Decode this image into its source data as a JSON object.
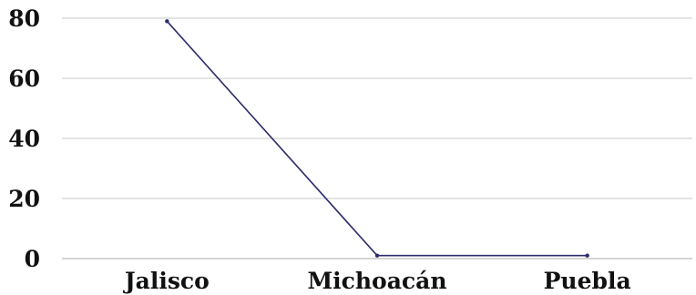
{
  "chart_data": {
    "type": "line",
    "categories": [
      "Jalisco",
      "Michoacán",
      "Puebla"
    ],
    "series": [
      {
        "values": [
          79,
          1,
          1
        ]
      }
    ],
    "ylim": [
      0,
      80
    ],
    "yticks": [
      0,
      20,
      40,
      60,
      80
    ],
    "grid": true,
    "legend": "none",
    "colors": {
      "series": "#2b2b6b",
      "grid": "#c8c8c8",
      "axis": "#a8a8a8",
      "text": "#111111"
    }
  }
}
